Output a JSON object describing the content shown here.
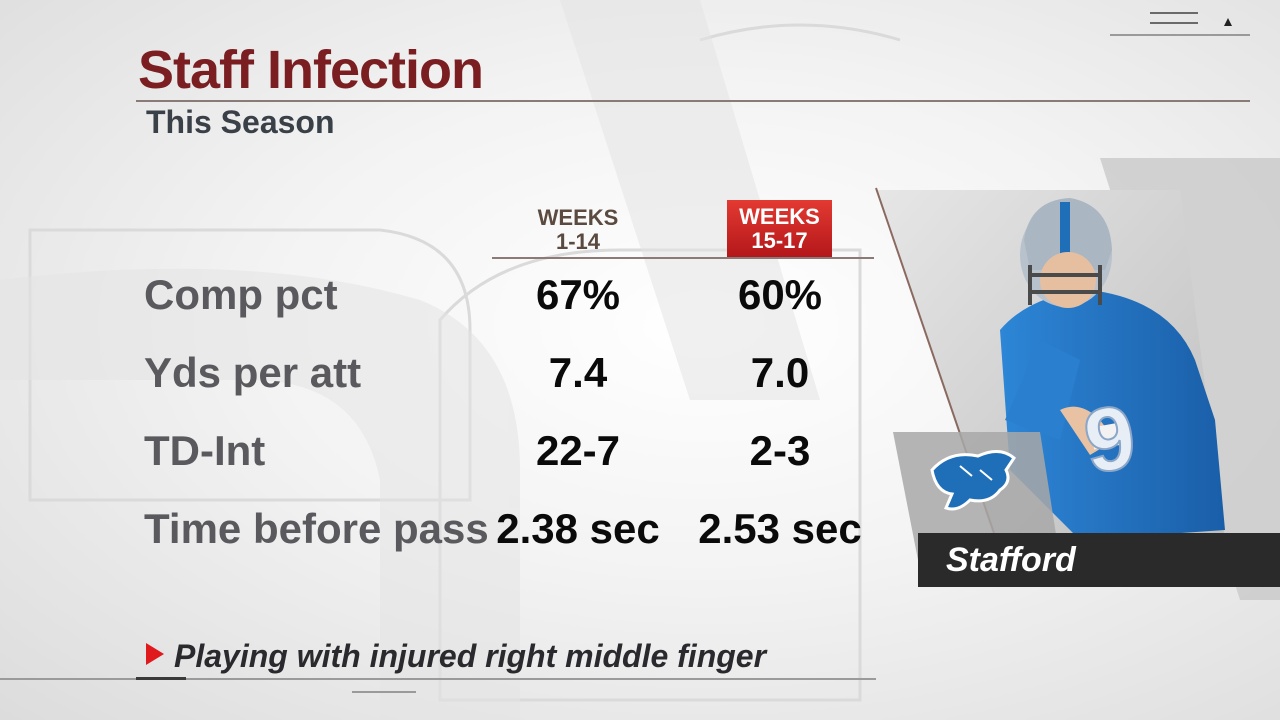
{
  "header": {
    "title": "Staff Infection",
    "subtitle": "This Season"
  },
  "table": {
    "columns": [
      {
        "line1": "WEEKS",
        "line2": "1-14"
      },
      {
        "line1": "WEEKS",
        "line2": "15-17"
      }
    ],
    "rows": [
      {
        "label": "Comp pct",
        "values": [
          "67%",
          "60%"
        ]
      },
      {
        "label": "Yds per att",
        "values": [
          "7.4",
          "7.0"
        ]
      },
      {
        "label": "TD-Int",
        "values": [
          "22-7",
          "2-3"
        ]
      },
      {
        "label": "Time before pass",
        "values": [
          "2.38 sec",
          "2.53 sec"
        ]
      }
    ]
  },
  "player": {
    "name": "Stafford",
    "jersey_number": "9",
    "team_logo": "lion-logo-icon"
  },
  "footnote": {
    "text": "Playing with injured right middle finger",
    "bullet_icon": "triangle-right-icon"
  },
  "colors": {
    "title": "#7a1e22",
    "highlight": "#c8201f",
    "team_blue": "#1f6fb8",
    "name_bar": "#2a2a2a"
  }
}
